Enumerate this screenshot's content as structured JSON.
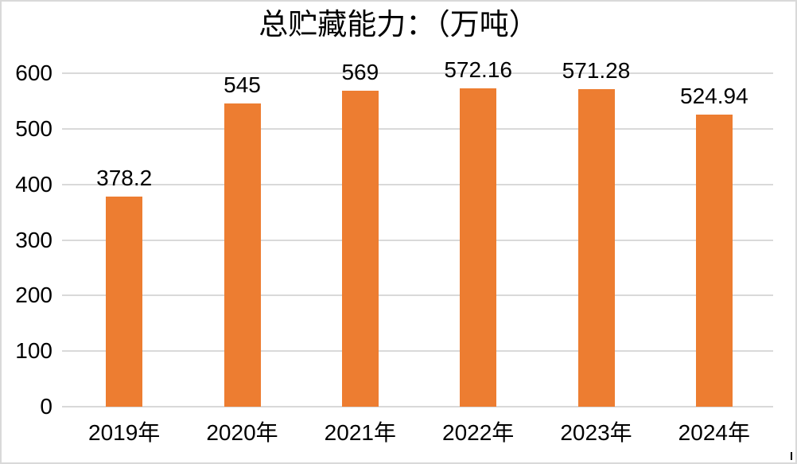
{
  "chart_data": {
    "type": "bar",
    "title": "总贮藏能力：（万吨）",
    "categories": [
      "2019年",
      "2020年",
      "2021年",
      "2022年",
      "2023年",
      "2024年"
    ],
    "values": [
      378.2,
      545,
      569,
      572.16,
      571.28,
      524.94
    ],
    "data_labels": [
      "378.2",
      "545",
      "569",
      "572.16",
      "571.28",
      "524.94"
    ],
    "xlabel": "",
    "ylabel": "",
    "ylim": [
      0,
      600
    ],
    "yticks": [
      0,
      100,
      200,
      300,
      400,
      500,
      600
    ],
    "grid": true,
    "legend_position": "none",
    "colors": {
      "bar": "#ED7D31",
      "gridline": "#D9D9D9",
      "frame_border": "#D9D9D9",
      "text": "#000000",
      "background": "#FFFFFF"
    }
  }
}
